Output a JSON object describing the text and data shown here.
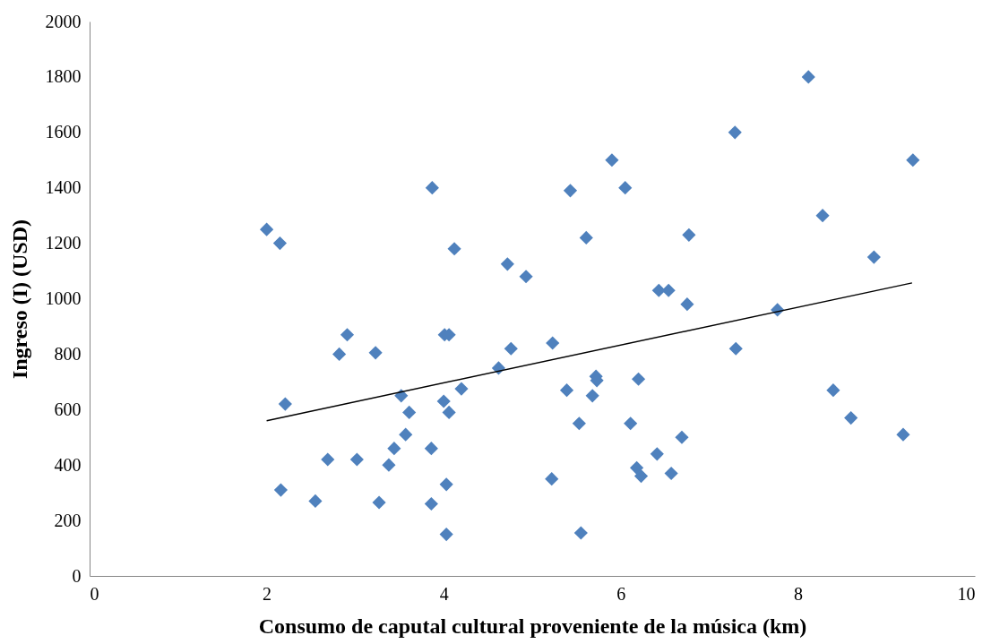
{
  "chart_data": {
    "type": "scatter",
    "xlabel": "Consumo de caputal cultural proveniente de la música (km)",
    "ylabel": "Ingreso (I) (USD)",
    "xlim": [
      0,
      10
    ],
    "xticks": [
      0,
      2,
      4,
      6,
      8,
      10
    ],
    "ylim": [
      0,
      2000
    ],
    "yticks": [
      0,
      200,
      400,
      600,
      800,
      1000,
      1200,
      1400,
      1600,
      1800,
      2000
    ],
    "grid": false,
    "marker": "diamond",
    "series": [
      {
        "color": "#4f81bd",
        "x": [
          2.0,
          2.15,
          2.21,
          2.16,
          2.55,
          2.69,
          2.82,
          2.91,
          3.02,
          3.23,
          3.27,
          3.38,
          3.44,
          3.52,
          3.57,
          3.61,
          3.86,
          3.86,
          3.87,
          4.01,
          4.06,
          4.0,
          4.06,
          4.03,
          4.03,
          4.12,
          4.2,
          4.62,
          4.72,
          4.76,
          4.93,
          5.23,
          5.22,
          5.39,
          5.43,
          5.53,
          5.55,
          5.61,
          5.68,
          5.72,
          5.73,
          5.9,
          6.05,
          6.11,
          6.18,
          6.2,
          6.23,
          6.41,
          6.43,
          6.54,
          6.57,
          6.69,
          6.75,
          6.77,
          7.29,
          7.3,
          7.77,
          8.12,
          8.28,
          8.4,
          8.6,
          8.86,
          9.19,
          9.3
        ],
        "values": [
          1250,
          1200,
          620,
          310,
          270,
          420,
          800,
          870,
          420,
          805,
          265,
          400,
          460,
          650,
          510,
          590,
          460,
          260,
          1400,
          870,
          870,
          630,
          590,
          330,
          150,
          1180,
          675,
          750,
          1125,
          820,
          1080,
          840,
          350,
          670,
          1390,
          550,
          155,
          1220,
          650,
          720,
          705,
          1500,
          1400,
          550,
          390,
          710,
          360,
          440,
          1030,
          1030,
          370,
          500,
          980,
          1230,
          1600,
          820,
          960,
          1800,
          1300,
          670,
          570,
          1150,
          510,
          1500
        ]
      },
      {
        "type": "line",
        "color": "#000000",
        "marker": "none",
        "line_style": "solid",
        "x": [
          2.0,
          9.29
        ],
        "values": [
          560,
          1057
        ]
      }
    ]
  }
}
